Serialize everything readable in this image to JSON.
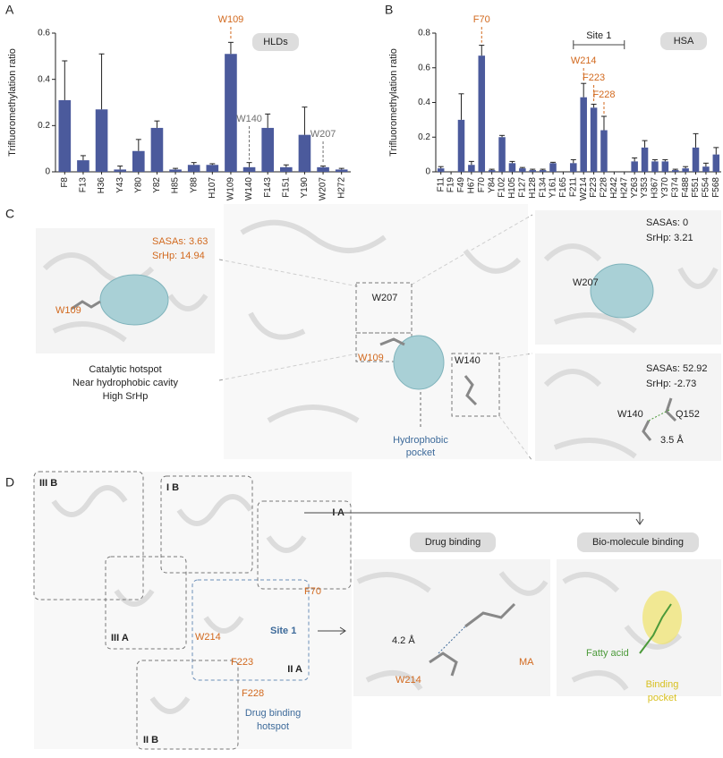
{
  "chart_data": [
    {
      "type": "bar",
      "label": "HLDs",
      "ylabel": "Trifluoromethylation ratio",
      "color": "#4b5a9c",
      "categories": [
        "F8",
        "F13",
        "H36",
        "Y43",
        "Y80",
        "Y82",
        "H85",
        "Y88",
        "H107",
        "W109",
        "W140",
        "F143",
        "F151",
        "Y190",
        "W207",
        "H272"
      ],
      "values": [
        0.31,
        0.05,
        0.27,
        0.01,
        0.09,
        0.19,
        0.01,
        0.03,
        0.03,
        0.51,
        0.02,
        0.19,
        0.02,
        0.16,
        0.02,
        0.01
      ],
      "errors": [
        0.17,
        0.02,
        0.24,
        0.015,
        0.05,
        0.03,
        0.005,
        0.01,
        0.005,
        0.05,
        0.02,
        0.06,
        0.01,
        0.12,
        0.005,
        0.005
      ],
      "ylim": [
        0,
        0.6
      ],
      "yticks": [
        0,
        0.2,
        0.4,
        0.6
      ],
      "annotations": [
        {
          "text": "W109",
          "color": "#d2691e"
        },
        {
          "text": "W140",
          "color": "#707070"
        },
        {
          "text": "W207",
          "color": "#707070"
        }
      ]
    },
    {
      "type": "bar",
      "label": "HSA",
      "ylabel": "Trifluoromethylation ratio",
      "color": "#4b5a9c",
      "bracket": "Site 1",
      "categories": [
        "F11",
        "F19",
        "F49",
        "H67",
        "F70",
        "Y84",
        "F102",
        "H105",
        "F127",
        "H128",
        "F134",
        "Y161",
        "F165",
        "F211",
        "W214",
        "F223",
        "F228",
        "H242",
        "H247",
        "Y263",
        "Y353",
        "H367",
        "Y370",
        "F374",
        "F488",
        "F551",
        "F554",
        "F568"
      ],
      "values": [
        0.02,
        0,
        0.3,
        0.04,
        0.67,
        0.01,
        0.2,
        0.05,
        0.02,
        0.01,
        0.01,
        0.05,
        0,
        0.05,
        0.43,
        0.37,
        0.24,
        0,
        0,
        0.06,
        0.14,
        0.06,
        0.06,
        0.01,
        0.02,
        0.14,
        0.03,
        0.1
      ],
      "errors": [
        0.01,
        0,
        0.15,
        0.02,
        0.06,
        0.005,
        0.01,
        0.01,
        0.005,
        0.005,
        0.005,
        0.005,
        0,
        0.02,
        0.08,
        0.02,
        0.08,
        0,
        0,
        0.02,
        0.04,
        0.01,
        0.01,
        0.005,
        0.01,
        0.08,
        0.02,
        0.04
      ],
      "ylim": [
        0,
        0.8
      ],
      "yticks": [
        0,
        0.2,
        0.4,
        0.6,
        0.8
      ],
      "annotations": [
        {
          "text": "F70",
          "color": "#d2691e"
        },
        {
          "text": "W214",
          "color": "#d2691e"
        },
        {
          "text": "F223",
          "color": "#d2691e"
        },
        {
          "text": "F228",
          "color": "#d2691e"
        }
      ]
    }
  ],
  "panel_labels": [
    "A",
    "B",
    "C",
    "D"
  ],
  "panel_c": {
    "left": {
      "sasa": "SASAs: 3.63",
      "srhp": "SrHp: 14.94",
      "residue": "W109",
      "caption": [
        "Catalytic hotspot",
        "Near hydrophobic cavity",
        "High SrHp"
      ]
    },
    "center": {
      "labels": [
        "W207",
        "W109",
        "W140"
      ],
      "pocket": [
        "Hydrophobic",
        "pocket"
      ]
    },
    "right_top": {
      "sasa": "SASAs: 0",
      "srhp": "SrHp: 3.21",
      "residue": "W207"
    },
    "right_bottom": {
      "sasa": "SASAs: 52.92",
      "srhp": "SrHp: -2.73",
      "residue": "W140",
      "partner": "Q152",
      "distance": "3.5 Å"
    }
  },
  "panel_d": {
    "domains": [
      "III B",
      "I B",
      "I A",
      "III A",
      "II A",
      "II B"
    ],
    "residues": [
      "F70",
      "W214",
      "F223",
      "F228"
    ],
    "site": "Site 1",
    "hotspot": [
      "Drug binding",
      "hotspot"
    ],
    "drug": {
      "title": "Drug binding",
      "distance": "4.2 Å",
      "ligand": "MA",
      "residue": "W214"
    },
    "bio": {
      "title": "Bio-molecule binding",
      "ligand": "Fatty acid",
      "pocket": [
        "Binding",
        "pocket"
      ]
    }
  }
}
